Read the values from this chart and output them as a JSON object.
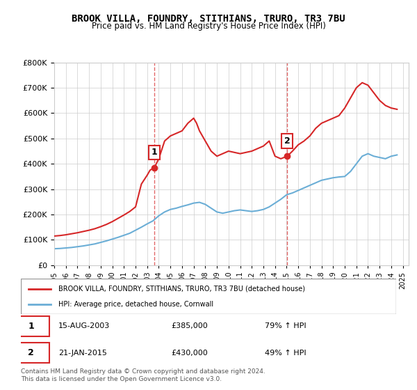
{
  "title": "BROOK VILLA, FOUNDRY, STITHIANS, TRURO, TR3 7BU",
  "subtitle": "Price paid vs. HM Land Registry's House Price Index (HPI)",
  "legend_line1": "BROOK VILLA, FOUNDRY, STITHIANS, TRURO, TR3 7BU (detached house)",
  "legend_line2": "HPI: Average price, detached house, Cornwall",
  "sale1_label": "1",
  "sale1_date": "15-AUG-2003",
  "sale1_price": "£385,000",
  "sale1_hpi": "79% ↑ HPI",
  "sale2_label": "2",
  "sale2_date": "21-JAN-2015",
  "sale2_price": "£430,000",
  "sale2_hpi": "49% ↑ HPI",
  "footer": "Contains HM Land Registry data © Crown copyright and database right 2024.\nThis data is licensed under the Open Government Licence v3.0.",
  "hpi_color": "#6baed6",
  "red_color": "#d62728",
  "sale1_x": 2003.62,
  "sale2_x": 2015.05,
  "ylim_min": 0,
  "ylim_max": 800000,
  "xlim_min": 1995,
  "xlim_max": 2025.5,
  "hpi_years": [
    1995,
    1995.5,
    1996,
    1996.5,
    1997,
    1997.5,
    1998,
    1998.5,
    1999,
    1999.5,
    2000,
    2000.5,
    2001,
    2001.5,
    2002,
    2002.5,
    2003,
    2003.5,
    2004,
    2004.5,
    2005,
    2005.5,
    2006,
    2006.5,
    2007,
    2007.5,
    2008,
    2008.5,
    2009,
    2009.5,
    2010,
    2010.5,
    2011,
    2011.5,
    2012,
    2012.5,
    2013,
    2013.5,
    2014,
    2014.5,
    2015,
    2015.5,
    2016,
    2016.5,
    2017,
    2017.5,
    2018,
    2018.5,
    2019,
    2019.5,
    2020,
    2020.5,
    2021,
    2021.5,
    2022,
    2022.5,
    2023,
    2023.5,
    2024,
    2024.5
  ],
  "hpi_values": [
    65000,
    66000,
    68000,
    70000,
    73000,
    76000,
    80000,
    84000,
    90000,
    96000,
    103000,
    110000,
    118000,
    126000,
    138000,
    150000,
    163000,
    175000,
    195000,
    210000,
    220000,
    225000,
    232000,
    238000,
    245000,
    248000,
    240000,
    225000,
    210000,
    205000,
    210000,
    215000,
    218000,
    215000,
    212000,
    215000,
    220000,
    230000,
    245000,
    260000,
    278000,
    285000,
    295000,
    305000,
    315000,
    325000,
    335000,
    340000,
    345000,
    348000,
    350000,
    370000,
    400000,
    430000,
    440000,
    430000,
    425000,
    420000,
    430000,
    435000
  ],
  "red_years": [
    1995,
    1995.5,
    1996,
    1996.5,
    1997,
    1997.5,
    1998,
    1998.5,
    1999,
    1999.5,
    2000,
    2000.5,
    2001,
    2001.5,
    2002,
    2002.5,
    2003,
    2003.25,
    2003.62,
    2004,
    2004.5,
    2005,
    2005.5,
    2006,
    2006.5,
    2007,
    2007.25,
    2007.5,
    2008,
    2008.5,
    2009,
    2009.5,
    2010,
    2010.5,
    2011,
    2011.5,
    2012,
    2012.5,
    2013,
    2013.5,
    2014,
    2014.5,
    2015.05,
    2015.5,
    2016,
    2016.5,
    2017,
    2017.5,
    2018,
    2018.5,
    2019,
    2019.5,
    2020,
    2020.5,
    2021,
    2021.5,
    2022,
    2022.5,
    2023,
    2023.5,
    2024,
    2024.5
  ],
  "red_values": [
    115000,
    117000,
    120000,
    124000,
    128000,
    133000,
    138000,
    144000,
    152000,
    161000,
    172000,
    185000,
    198000,
    212000,
    230000,
    320000,
    355000,
    375000,
    385000,
    420000,
    490000,
    510000,
    520000,
    530000,
    560000,
    580000,
    560000,
    530000,
    490000,
    450000,
    430000,
    440000,
    450000,
    445000,
    440000,
    445000,
    450000,
    460000,
    470000,
    490000,
    430000,
    420000,
    430000,
    450000,
    475000,
    490000,
    510000,
    540000,
    560000,
    570000,
    580000,
    590000,
    620000,
    660000,
    700000,
    720000,
    710000,
    680000,
    650000,
    630000,
    620000,
    615000
  ],
  "xticks": [
    1995,
    1996,
    1997,
    1998,
    1999,
    2000,
    2001,
    2002,
    2003,
    2004,
    2005,
    2006,
    2007,
    2008,
    2009,
    2010,
    2011,
    2012,
    2013,
    2014,
    2015,
    2016,
    2017,
    2018,
    2019,
    2020,
    2021,
    2022,
    2023,
    2024,
    2025
  ],
  "yticks": [
    0,
    100000,
    200000,
    300000,
    400000,
    500000,
    600000,
    700000,
    800000
  ]
}
